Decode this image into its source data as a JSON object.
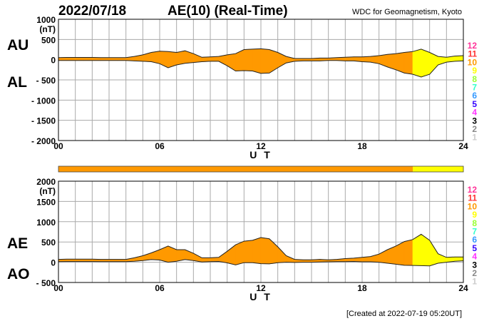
{
  "header": {
    "date": "2022/07/18",
    "title": "AE(10) (Real-Time)",
    "source": "WDC for Geomagnetism, Kyoto"
  },
  "footer": {
    "created": "[Created at 2022-07-19 05:20UT]"
  },
  "level_legend": [
    {
      "label": "12",
      "color": "#ff3399"
    },
    {
      "label": "11",
      "color": "#ff3333"
    },
    {
      "label": "10",
      "color": "#ff9900"
    },
    {
      "label": "9",
      "color": "#ffff00"
    },
    {
      "label": "8",
      "color": "#99ff33"
    },
    {
      "label": "7",
      "color": "#33ffcc"
    },
    {
      "label": "6",
      "color": "#3399ff"
    },
    {
      "label": "5",
      "color": "#3300ff"
    },
    {
      "label": "4",
      "color": "#ff33ff"
    },
    {
      "label": "3",
      "color": "#000000"
    },
    {
      "label": "2",
      "color": "#888888"
    },
    {
      "label": "1",
      "color": "#cccccc"
    }
  ],
  "chart_data": [
    {
      "type": "area",
      "name": "AU/AL",
      "upper_label": "AU",
      "lower_label": "AL",
      "unit": "(nT)",
      "xlabel": "U T",
      "x_ticks": [
        "00",
        "06",
        "12",
        "18",
        "24"
      ],
      "xlim": [
        0,
        24
      ],
      "ylim": [
        -2000,
        1000
      ],
      "y_ticks": [
        "1000",
        "500",
        "0",
        "- 500",
        "- 1000",
        "- 1500",
        "- 2000"
      ],
      "y_tick_values": [
        1000,
        500,
        0,
        -500,
        -1000,
        -1500,
        -2000
      ],
      "grid": true,
      "x_step_hours": 0.5,
      "upper": [
        50,
        55,
        55,
        55,
        55,
        50,
        50,
        50,
        50,
        80,
        120,
        180,
        210,
        200,
        180,
        220,
        150,
        60,
        70,
        80,
        120,
        150,
        250,
        260,
        270,
        250,
        180,
        80,
        30,
        30,
        30,
        40,
        40,
        50,
        60,
        70,
        70,
        80,
        100,
        130,
        150,
        180,
        200,
        260,
        180,
        80,
        60,
        90,
        100
      ],
      "lower": [
        -20,
        -20,
        -20,
        -20,
        -20,
        -20,
        -20,
        -20,
        -20,
        -30,
        -40,
        -50,
        -100,
        -200,
        -130,
        -90,
        -70,
        -50,
        -40,
        -40,
        -150,
        -280,
        -270,
        -280,
        -340,
        -330,
        -200,
        -80,
        -40,
        -30,
        -30,
        -30,
        -20,
        -20,
        -30,
        -30,
        -50,
        -60,
        -100,
        -180,
        -250,
        -330,
        -360,
        -430,
        -360,
        -130,
        -60,
        -40,
        -30
      ]
    },
    {
      "type": "area",
      "name": "AE/AO",
      "upper_label": "AE",
      "lower_label": "AO",
      "unit": "(nT)",
      "xlabel": "U T",
      "x_ticks": [
        "00",
        "06",
        "12",
        "18",
        "24"
      ],
      "xlim": [
        0,
        24
      ],
      "ylim": [
        -500,
        2000
      ],
      "y_ticks": [
        "2000",
        "1500",
        "1000",
        "500",
        "0",
        "- 500"
      ],
      "y_tick_values": [
        2000,
        1500,
        1000,
        500,
        0,
        -500
      ],
      "grid": true,
      "x_step_hours": 0.5,
      "upper": [
        70,
        75,
        75,
        75,
        75,
        70,
        70,
        70,
        70,
        110,
        160,
        230,
        310,
        400,
        310,
        310,
        220,
        110,
        110,
        120,
        270,
        430,
        520,
        540,
        610,
        580,
        380,
        160,
        70,
        60,
        60,
        70,
        60,
        70,
        90,
        100,
        120,
        140,
        200,
        310,
        400,
        510,
        560,
        690,
        540,
        210,
        120,
        130,
        130
      ],
      "lower": [
        15,
        17.5,
        17.5,
        17.5,
        17.5,
        15,
        15,
        15,
        15,
        25,
        40,
        65,
        55,
        0,
        25,
        65,
        40,
        5,
        15,
        20,
        -15,
        -65,
        -10,
        -10,
        -35,
        -40,
        -10,
        0,
        -5,
        0,
        0,
        5,
        10,
        15,
        15,
        20,
        10,
        10,
        0,
        -25,
        -50,
        -75,
        -80,
        -85,
        -90,
        -25,
        0,
        25,
        35
      ]
    }
  ],
  "station_level": [
    10,
    10,
    10,
    10,
    10,
    10,
    10,
    10,
    10,
    10,
    10,
    10,
    10,
    10,
    10,
    10,
    10,
    10,
    10,
    10,
    10,
    10,
    10,
    10,
    10,
    10,
    10,
    10,
    10,
    10,
    10,
    10,
    10,
    10,
    10,
    10,
    10,
    10,
    10,
    10,
    10,
    10,
    9,
    9,
    9,
    9,
    9,
    9,
    9
  ]
}
